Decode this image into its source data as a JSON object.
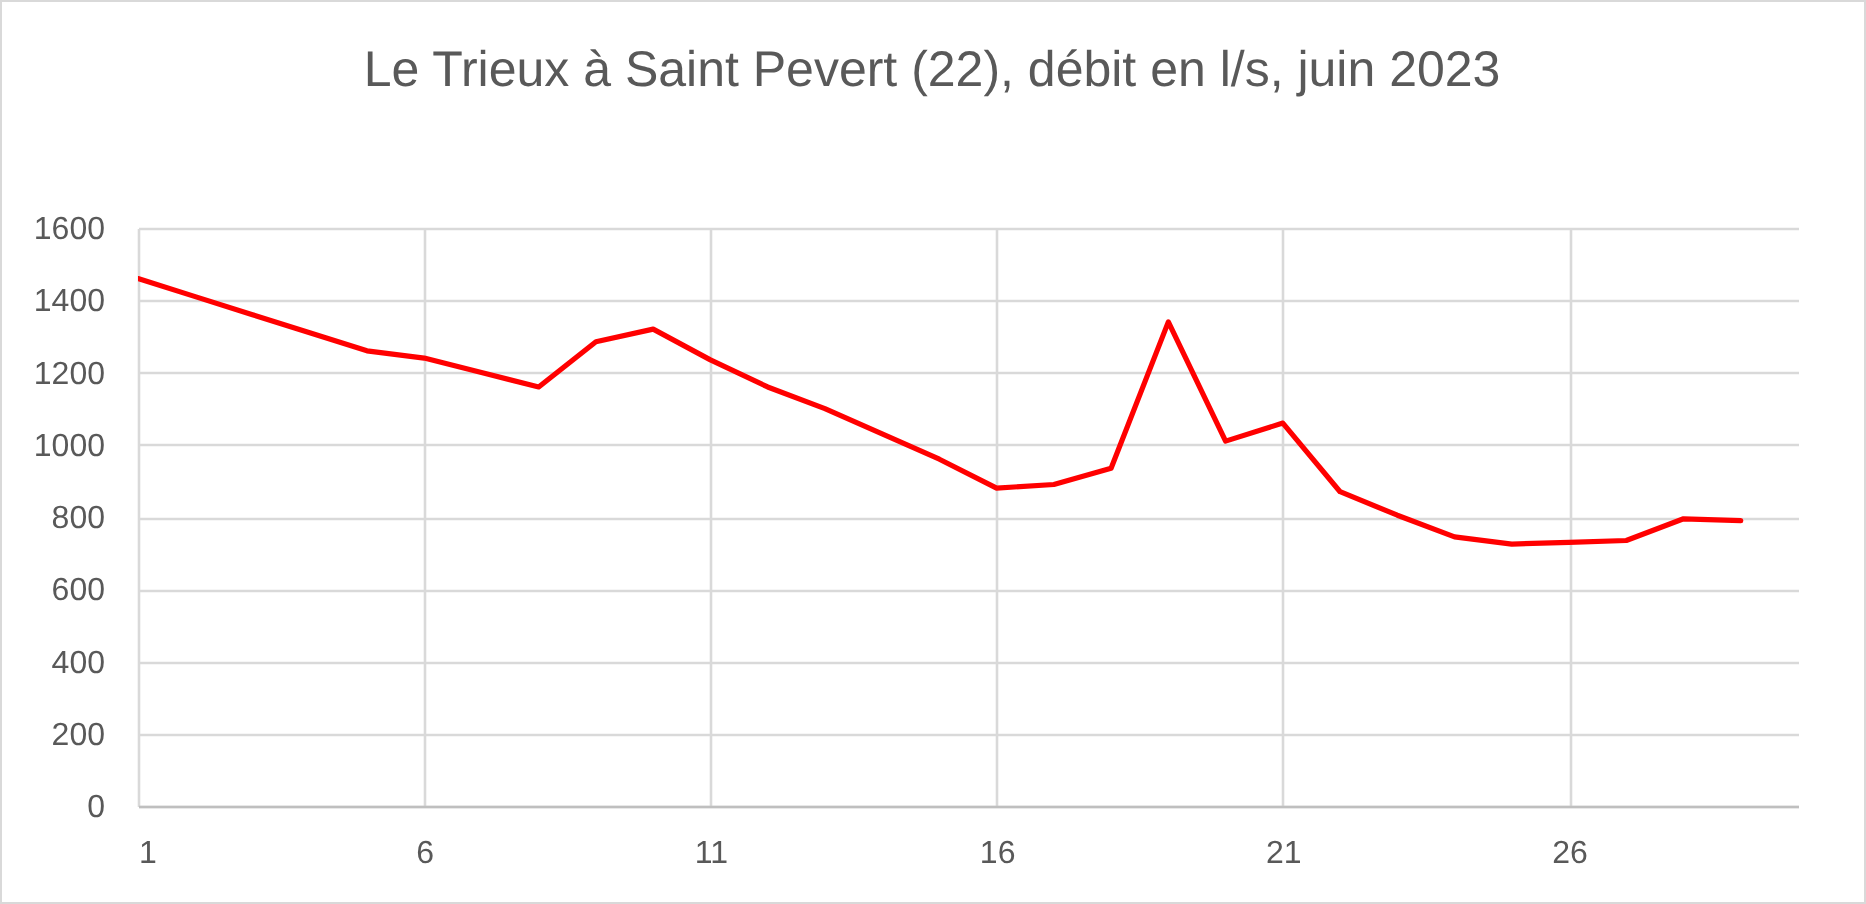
{
  "chart_data": {
    "type": "line",
    "title": "Le Trieux à Saint Pevert (22), débit en l/s, juin 2023",
    "x": [
      1,
      2,
      3,
      4,
      5,
      6,
      7,
      8,
      9,
      10,
      11,
      12,
      13,
      14,
      15,
      16,
      17,
      18,
      19,
      20,
      21,
      22,
      23,
      24,
      25,
      26,
      27,
      28,
      29
    ],
    "series": [
      {
        "color": "#ff0000",
        "values": [
          1460,
          1410,
          1360,
          1310,
          1260,
          1240,
          1200,
          1160,
          1285,
          1320,
          1235,
          1160,
          1100,
          1030,
          960,
          880,
          890,
          935,
          1340,
          1010,
          1060,
          870,
          805,
          745,
          725,
          730,
          735,
          795,
          790
        ]
      }
    ],
    "xlim": [
      1,
      30
    ],
    "xticks": [
      1,
      6,
      11,
      16,
      21,
      26
    ],
    "ylim": [
      0,
      1600
    ],
    "yticks": [
      0,
      200,
      400,
      600,
      800,
      1000,
      1200,
      1400,
      1600
    ],
    "grid": true,
    "line_style": "solid"
  }
}
